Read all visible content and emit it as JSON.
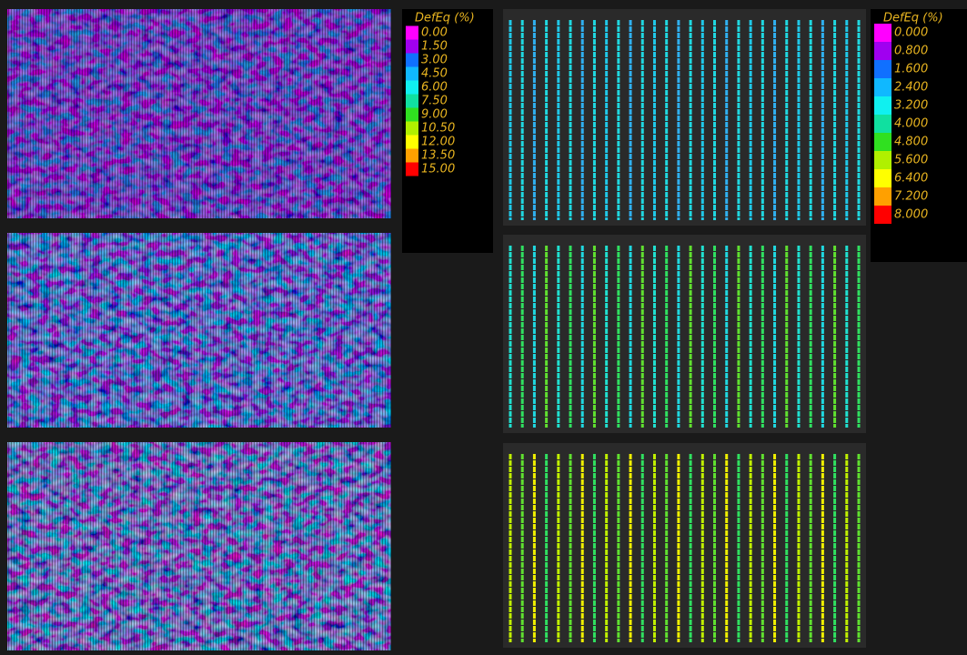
{
  "legends": [
    {
      "title": "DefEq (%)",
      "entries": [
        {
          "label": "0.00",
          "color": "#ff00ff"
        },
        {
          "label": "1.50",
          "color": "#a000f0"
        },
        {
          "label": "3.00",
          "color": "#1070ff"
        },
        {
          "label": "4.50",
          "color": "#10b8ff"
        },
        {
          "label": "6.00",
          "color": "#10f0f0"
        },
        {
          "label": "7.50",
          "color": "#10e0a0"
        },
        {
          "label": "9.00",
          "color": "#30e020"
        },
        {
          "label": "10.50",
          "color": "#b0f000"
        },
        {
          "label": "12.00",
          "color": "#ffff00"
        },
        {
          "label": "13.50",
          "color": "#ffa000"
        },
        {
          "label": "15.00",
          "color": "#ff0000"
        }
      ]
    },
    {
      "title": "DefEq (%)",
      "entries": [
        {
          "label": "0.000",
          "color": "#ff00ff"
        },
        {
          "label": "0.800",
          "color": "#a000f0"
        },
        {
          "label": "1.600",
          "color": "#1070ff"
        },
        {
          "label": "2.400",
          "color": "#10b8ff"
        },
        {
          "label": "3.200",
          "color": "#10f0f0"
        },
        {
          "label": "4.000",
          "color": "#10e0a0"
        },
        {
          "label": "4.800",
          "color": "#30e020"
        },
        {
          "label": "5.600",
          "color": "#b0f000"
        },
        {
          "label": "6.400",
          "color": "#ffff00"
        },
        {
          "label": "7.200",
          "color": "#ffa000"
        },
        {
          "label": "8.000",
          "color": "#ff0000"
        }
      ]
    }
  ]
}
